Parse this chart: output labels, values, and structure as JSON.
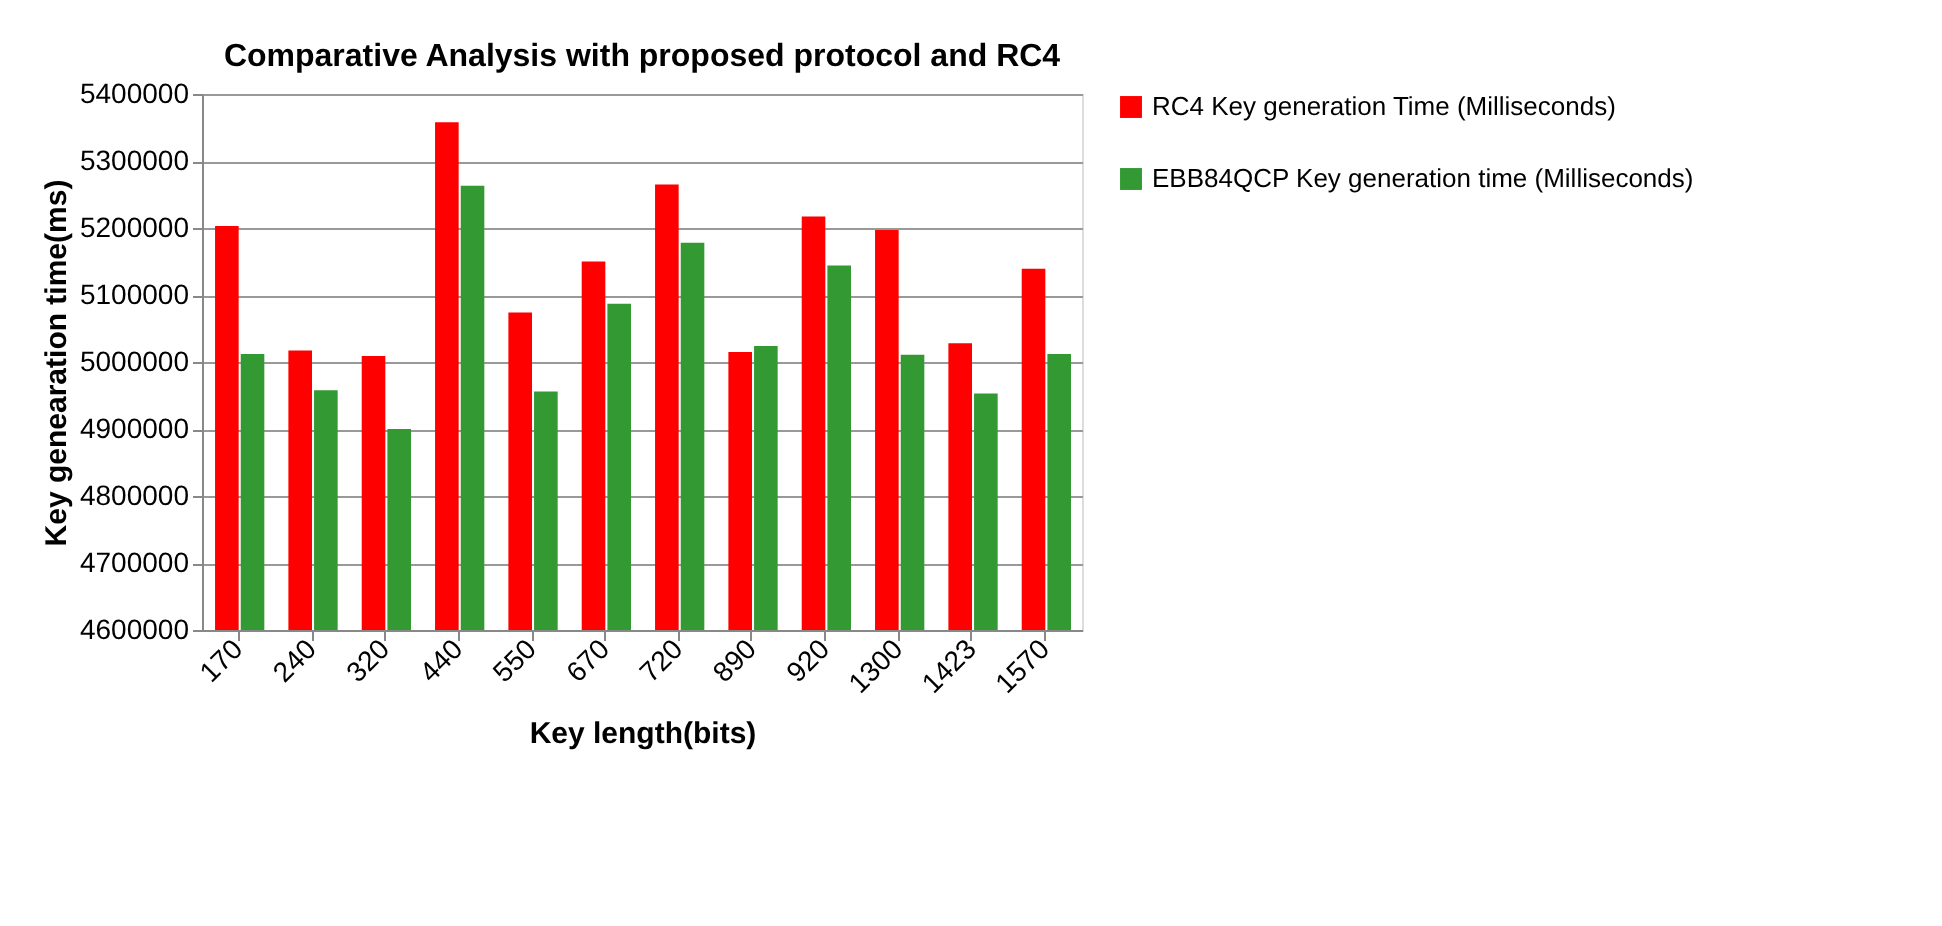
{
  "chart_data": {
    "type": "bar",
    "title": "Comparative Analysis with proposed protocol and RC4",
    "xlabel": "Key length(bits)",
    "ylabel": "Key genearation time(ms)",
    "categories": [
      "170",
      "240",
      "320",
      "440",
      "550",
      "670",
      "720",
      "890",
      "920",
      "1300",
      "1423",
      "1570"
    ],
    "series": [
      {
        "name": "RC4  Key generation  Time (Milliseconds)",
        "color": "#ff0000",
        "values": [
          5203000,
          5017000,
          5009000,
          5358000,
          5074000,
          5150000,
          5265000,
          5015000,
          5217000,
          5197000,
          5028000,
          5139000
        ]
      },
      {
        "name": "EBB84QCP  Key generation time (Milliseconds)",
        "color": "#339933",
        "values": [
          5012000,
          4958000,
          4900000,
          5263000,
          4956000,
          5087000,
          5178000,
          5024000,
          5144000,
          5011000,
          4953000,
          5012000
        ]
      }
    ],
    "ylim": [
      4600000,
      5400000
    ],
    "yticks": [
      4600000,
      4700000,
      4800000,
      4900000,
      5000000,
      5100000,
      5200000,
      5300000,
      5400000
    ],
    "grid": "y",
    "legend": "right"
  }
}
